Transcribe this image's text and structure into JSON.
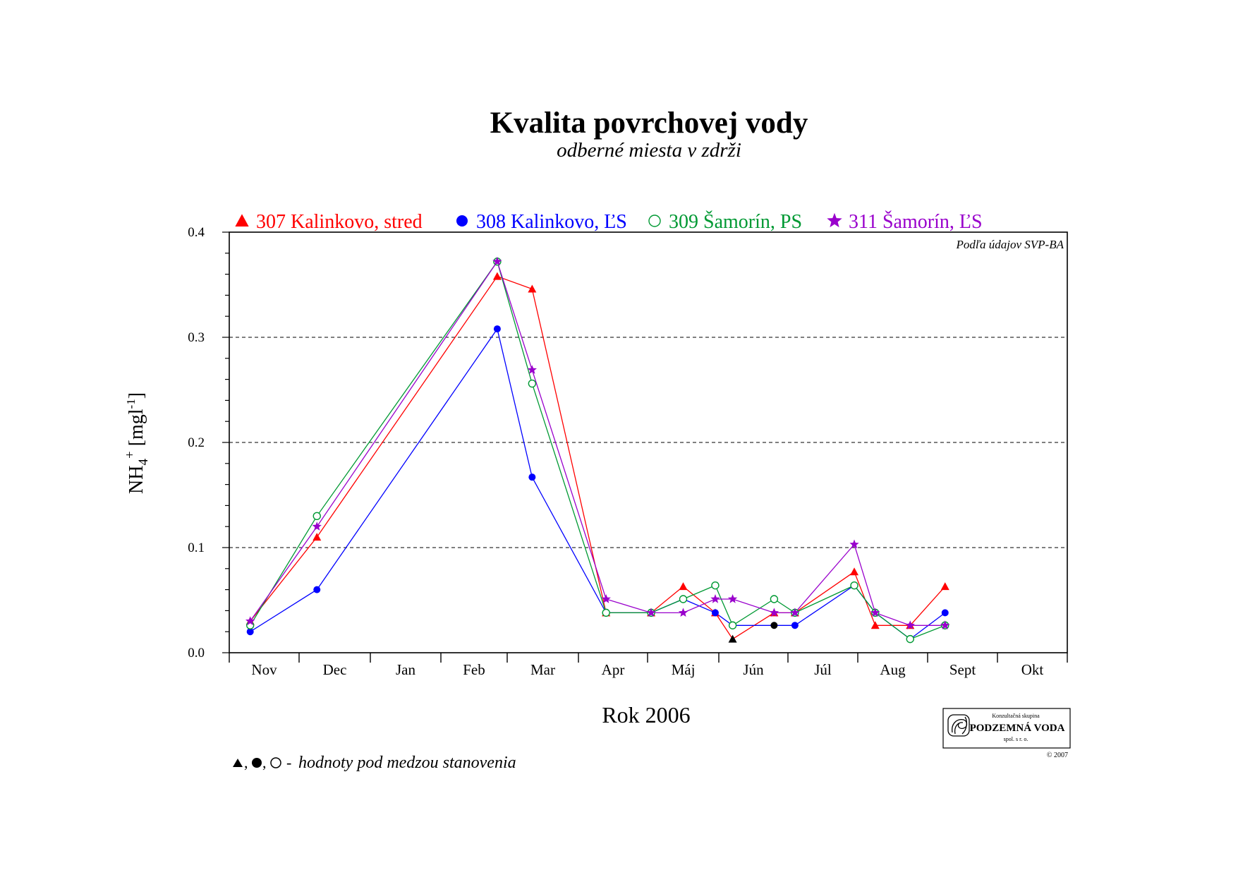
{
  "chart_data": {
    "type": "line",
    "title": "Kvalita povrchovej vody",
    "subtitle": "odberné miesta v zdrži",
    "xlabel": "Rok 2006",
    "ylabel": "NH4+ [mg l-1]",
    "ylim": [
      0,
      0.4
    ],
    "yticks": [
      "0.0",
      "0.1",
      "0.2",
      "0.3",
      "0.4"
    ],
    "grid": "dashed horizontal at 0.1, 0.2, 0.3",
    "legend_position": "top",
    "note": "Podľa údajov SVP-BA",
    "footnote": "hodnoty pod medzou stanovenia",
    "months": [
      "Nov",
      "Dec",
      "Jan",
      "Feb",
      "Mar",
      "Apr",
      "Máj",
      "Jún",
      "Júl",
      "Aug",
      "Sept",
      "Okt"
    ],
    "series": [
      {
        "name": "307 Kalinkovo, stred",
        "color": "#ff0000",
        "marker": "triangle",
        "points": [
          [
            0.3,
            0.03
          ],
          [
            1.25,
            0.11
          ],
          [
            3.85,
            0.358
          ],
          [
            4.35,
            0.346
          ],
          [
            5.4,
            0.038
          ],
          [
            6.05,
            0.038
          ],
          [
            6.5,
            0.063
          ],
          [
            6.95,
            0.038
          ],
          [
            7.2,
            0.013
          ],
          [
            7.8,
            0.038
          ],
          [
            8.1,
            0.038
          ],
          [
            8.95,
            0.077
          ],
          [
            9.25,
            0.026
          ],
          [
            9.75,
            0.026
          ],
          [
            10.25,
            0.063
          ]
        ],
        "below_limit": [
          8
        ]
      },
      {
        "name": "308 Kalinkovo, ĽS",
        "color": "#0000ff",
        "marker": "circle",
        "points": [
          [
            0.3,
            0.02
          ],
          [
            1.25,
            0.06
          ],
          [
            3.85,
            0.308
          ],
          [
            4.35,
            0.167
          ],
          [
            5.4,
            0.038
          ],
          [
            6.05,
            0.038
          ],
          [
            6.5,
            0.051
          ],
          [
            6.95,
            0.038
          ],
          [
            7.2,
            0.026
          ],
          [
            7.8,
            0.026
          ],
          [
            8.1,
            0.026
          ],
          [
            8.95,
            0.064
          ],
          [
            9.25,
            0.038
          ],
          [
            9.75,
            0.013
          ],
          [
            10.25,
            0.038
          ]
        ],
        "below_limit": [
          9
        ]
      },
      {
        "name": "309 Šamorín, PS",
        "color": "#009933",
        "marker": "open-circle",
        "points": [
          [
            0.3,
            0.026
          ],
          [
            1.25,
            0.13
          ],
          [
            3.85,
            0.372
          ],
          [
            4.35,
            0.256
          ],
          [
            5.4,
            0.038
          ],
          [
            6.05,
            0.038
          ],
          [
            6.5,
            0.051
          ],
          [
            6.95,
            0.064
          ],
          [
            7.2,
            0.026
          ],
          [
            7.8,
            0.051
          ],
          [
            8.1,
            0.038
          ],
          [
            8.95,
            0.064
          ],
          [
            9.25,
            0.038
          ],
          [
            9.75,
            0.013
          ],
          [
            10.25,
            0.026
          ]
        ],
        "below_limit": []
      },
      {
        "name": "311 Šamorín, ĽS",
        "color": "#9900cc",
        "marker": "star",
        "points": [
          [
            0.3,
            0.03
          ],
          [
            1.25,
            0.12
          ],
          [
            3.85,
            0.372
          ],
          [
            4.35,
            0.269
          ],
          [
            5.4,
            0.051
          ],
          [
            6.05,
            0.038
          ],
          [
            6.5,
            0.038
          ],
          [
            6.95,
            0.051
          ],
          [
            7.2,
            0.051
          ],
          [
            7.8,
            0.038
          ],
          [
            8.1,
            0.038
          ],
          [
            8.95,
            0.103
          ],
          [
            9.25,
            0.038
          ],
          [
            9.75,
            0.026
          ],
          [
            10.25,
            0.026
          ]
        ],
        "below_limit": []
      }
    ]
  },
  "logo": {
    "top": "Konzultačná skupina",
    "main": "PODZEMNÁ VODA",
    "sub": "spol. s r. o.",
    "copyright": "© 2007"
  }
}
